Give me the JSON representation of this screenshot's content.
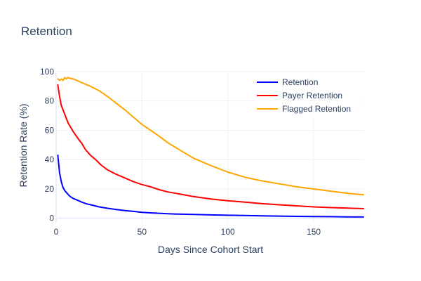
{
  "chart_data": {
    "type": "line",
    "title": "Retention",
    "xlabel": "Days Since Cohort Start",
    "ylabel": "Retention Rate (%)",
    "xlim": [
      0,
      179
    ],
    "ylim": [
      -3,
      100
    ],
    "x_ticks": [
      0,
      50,
      100,
      150
    ],
    "y_ticks": [
      0,
      20,
      40,
      60,
      80,
      100
    ],
    "grid": true,
    "legend_position": "top-right",
    "series": [
      {
        "name": "Retention",
        "color": "#0000ff",
        "x": [
          1,
          2,
          3,
          4,
          5,
          6,
          8,
          10,
          12,
          15,
          18,
          21,
          25,
          30,
          35,
          40,
          45,
          50,
          55,
          60,
          65,
          70,
          80,
          90,
          100,
          110,
          120,
          130,
          140,
          150,
          160,
          170,
          179
        ],
        "y": [
          43,
          31,
          25,
          21,
          19,
          17.5,
          15,
          13.5,
          12.5,
          11,
          9.8,
          9,
          7.8,
          6.8,
          6,
          5.3,
          4.7,
          4.1,
          3.7,
          3.4,
          3.1,
          2.9,
          2.6,
          2.3,
          2.1,
          1.9,
          1.7,
          1.5,
          1.3,
          1.2,
          1.1,
          1.0,
          0.9
        ]
      },
      {
        "name": "Payer Retention",
        "color": "#ff0000",
        "x": [
          1,
          2,
          3,
          5,
          7,
          10,
          13,
          15,
          17,
          20,
          23,
          26,
          30,
          35,
          40,
          45,
          50,
          55,
          60,
          65,
          70,
          80,
          90,
          100,
          110,
          120,
          130,
          140,
          150,
          160,
          170,
          179
        ],
        "y": [
          91,
          83,
          77,
          71,
          65,
          59,
          54,
          51,
          47,
          43,
          40,
          36.5,
          33,
          30,
          27.5,
          25,
          23,
          21.5,
          19.5,
          18,
          17,
          14.8,
          13.2,
          12,
          11,
          10,
          9.2,
          8.5,
          7.8,
          7.3,
          6.9,
          6.6
        ]
      },
      {
        "name": "Flagged Retention",
        "color": "#ffa500",
        "x": [
          1,
          2,
          3,
          4,
          5,
          6,
          7,
          8,
          10,
          12,
          15,
          18,
          20,
          25,
          30,
          35,
          40,
          45,
          50,
          55,
          60,
          65,
          70,
          75,
          80,
          90,
          100,
          110,
          120,
          130,
          140,
          150,
          160,
          170,
          179
        ],
        "y": [
          95,
          94,
          95,
          94,
          96,
          95,
          96,
          95.5,
          95,
          94,
          92.5,
          91,
          90,
          87,
          83,
          78.5,
          74,
          69,
          64,
          60,
          56,
          51.5,
          48,
          44.5,
          41,
          36,
          31.5,
          28,
          25.5,
          23.5,
          21.5,
          20,
          18.5,
          17,
          16
        ]
      }
    ]
  }
}
